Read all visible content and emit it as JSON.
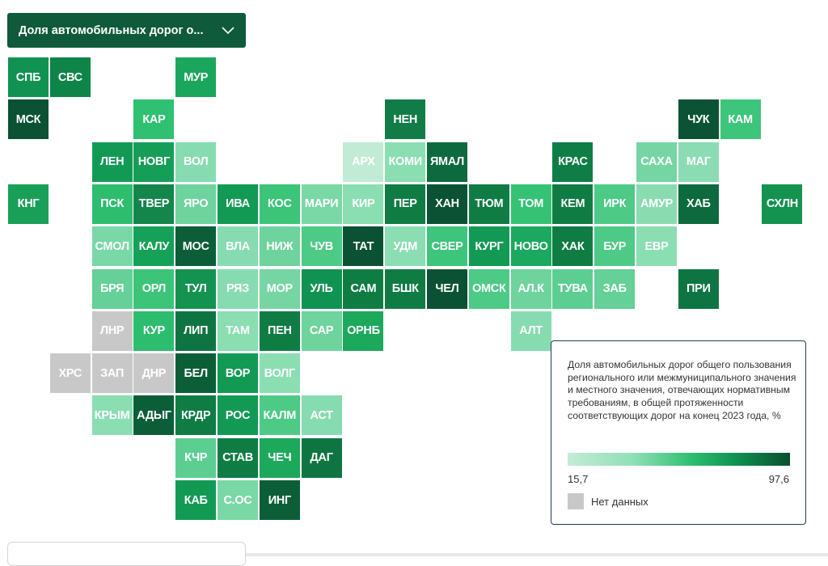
{
  "dropdown": {
    "label": "Доля автомобильных дорог о...",
    "icon": "chevron-down-icon"
  },
  "legend": {
    "description": "Доля автомобильных дорог общего пользования регионального или межмуниципального значения и местного значения, отвечающих нормативным требованиям, в общей протяженности соответствующих дорог на конец 2023 года, %",
    "min": "15,7",
    "max": "97,6",
    "no_data": "Нет данных",
    "no_data_color": "#c8c8c8",
    "gradient": [
      "#c3ecd6",
      "#8fdfb6",
      "#2fc072",
      "#109352",
      "#094e30"
    ]
  },
  "regions": [
    {
      "code": "СПБ",
      "color": "#109352"
    },
    {
      "code": "СВС",
      "color": "#0e8448"
    },
    {
      "code": "МУР",
      "color": "#1ba65d"
    },
    {
      "code": "МСК",
      "color": "#0b5134"
    },
    {
      "code": "КАР",
      "color": "#2fc072"
    },
    {
      "code": "НЕН",
      "color": "#117c47"
    },
    {
      "code": "ЧУК",
      "color": "#0b5334"
    },
    {
      "code": "КАМ",
      "color": "#3dc57b"
    },
    {
      "code": "ЛЕН",
      "color": "#129a55"
    },
    {
      "code": "НОВГ",
      "color": "#169e58"
    },
    {
      "code": "ВОЛ",
      "color": "#86dcb0"
    },
    {
      "code": "АРХ",
      "color": "#c1ebd4"
    },
    {
      "code": "КОМИ",
      "color": "#8adeb2"
    },
    {
      "code": "ЯМАЛ",
      "color": "#0d6a3e"
    },
    {
      "code": "КРАС",
      "color": "#0f7e46"
    },
    {
      "code": "САХА",
      "color": "#76d6a3"
    },
    {
      "code": "МАГ",
      "color": "#8bdcb3"
    },
    {
      "code": "КНГ",
      "color": "#1a9f59"
    },
    {
      "code": "ПСК",
      "color": "#2ebd6e"
    },
    {
      "code": "ТВЕР",
      "color": "#14864b"
    },
    {
      "code": "ЯРО",
      "color": "#6ed39d"
    },
    {
      "code": "ИВА",
      "color": "#129a55"
    },
    {
      "code": "КОС",
      "color": "#3cc479"
    },
    {
      "code": "МАРИ",
      "color": "#79d8a6"
    },
    {
      "code": "КИР",
      "color": "#8adeb2"
    },
    {
      "code": "ПЕР",
      "color": "#0f7c44"
    },
    {
      "code": "ХАН",
      "color": "#0b5235"
    },
    {
      "code": "ТЮМ",
      "color": "#0f7c44"
    },
    {
      "code": "ТОМ",
      "color": "#36c275"
    },
    {
      "code": "КЕМ",
      "color": "#0f7c44"
    },
    {
      "code": "ИРК",
      "color": "#4dca86"
    },
    {
      "code": "АМУР",
      "color": "#8adcb0"
    },
    {
      "code": "ХАБ",
      "color": "#0d6a3e"
    },
    {
      "code": "СХЛН",
      "color": "#14924f"
    },
    {
      "code": "СМОЛ",
      "color": "#79d8a6"
    },
    {
      "code": "КАЛУ",
      "color": "#15a157"
    },
    {
      "code": "МОС",
      "color": "#0c5e39"
    },
    {
      "code": "ВЛА",
      "color": "#86dcb0"
    },
    {
      "code": "НИЖ",
      "color": "#6ed39d"
    },
    {
      "code": "ЧУВ",
      "color": "#4dca86"
    },
    {
      "code": "ТАТ",
      "color": "#0b5235"
    },
    {
      "code": "УДМ",
      "color": "#8adeb2"
    },
    {
      "code": "СВЕР",
      "color": "#3dc57b"
    },
    {
      "code": "КУРГ",
      "color": "#129a55"
    },
    {
      "code": "НОВО",
      "color": "#1aa95f"
    },
    {
      "code": "ХАК",
      "color": "#0f7c44"
    },
    {
      "code": "БУР",
      "color": "#4dca86"
    },
    {
      "code": "ЕВР",
      "color": "#8adeb2"
    },
    {
      "code": "БРЯ",
      "color": "#65d097"
    },
    {
      "code": "ОРЛ",
      "color": "#3cc479"
    },
    {
      "code": "ТУЛ",
      "color": "#14924f"
    },
    {
      "code": "РЯЗ",
      "color": "#86dcb0"
    },
    {
      "code": "МОР",
      "color": "#76d6a3"
    },
    {
      "code": "УЛЬ",
      "color": "#109352"
    },
    {
      "code": "САМ",
      "color": "#0f7c44"
    },
    {
      "code": "БШК",
      "color": "#0f7c44"
    },
    {
      "code": "ЧЕЛ",
      "color": "#0b5235"
    },
    {
      "code": "ОМСК",
      "color": "#4dca86"
    },
    {
      "code": "АЛ.К",
      "color": "#6ed39d"
    },
    {
      "code": "ТУВА",
      "color": "#5dce92"
    },
    {
      "code": "ЗАБ",
      "color": "#65d097"
    },
    {
      "code": "ПРИ",
      "color": "#0e7542"
    },
    {
      "code": "ЛНР",
      "color": "#c8c8c8"
    },
    {
      "code": "КУР",
      "color": "#2cbd6e"
    },
    {
      "code": "ЛИП",
      "color": "#0e7542"
    },
    {
      "code": "ТАМ",
      "color": "#8adeb2"
    },
    {
      "code": "ПЕН",
      "color": "#0f7c44"
    },
    {
      "code": "САР",
      "color": "#6ed39d"
    },
    {
      "code": "ОРНБ",
      "color": "#1ca95c"
    },
    {
      "code": "АЛТ",
      "color": "#86dcb0"
    },
    {
      "code": "ХРС",
      "color": "#c8c8c8"
    },
    {
      "code": "ЗАП",
      "color": "#c8c8c8"
    },
    {
      "code": "ДНР",
      "color": "#c8c8c8"
    },
    {
      "code": "БЕЛ",
      "color": "#0c5e39"
    },
    {
      "code": "ВОР",
      "color": "#129a55"
    },
    {
      "code": "ВОЛГ",
      "color": "#8adeb2"
    },
    {
      "code": "КРЫМ",
      "color": "#8adeb2"
    },
    {
      "code": "АДЫГ",
      "color": "#0c5e39"
    },
    {
      "code": "КРДР",
      "color": "#0f7c44"
    },
    {
      "code": "РОС",
      "color": "#129a55"
    },
    {
      "code": "КАЛМ",
      "color": "#4dca86"
    },
    {
      "code": "АСТ",
      "color": "#86dcb0"
    },
    {
      "code": "КЧР",
      "color": "#5dce92"
    },
    {
      "code": "СТАВ",
      "color": "#0f7c44"
    },
    {
      "code": "ЧЕЧ",
      "color": "#1ca95c"
    },
    {
      "code": "ДАГ",
      "color": "#0e7542"
    },
    {
      "code": "КАБ",
      "color": "#129a55"
    },
    {
      "code": "С.ОС",
      "color": "#79d8a6"
    },
    {
      "code": "ИНГ",
      "color": "#0c5e39"
    }
  ]
}
